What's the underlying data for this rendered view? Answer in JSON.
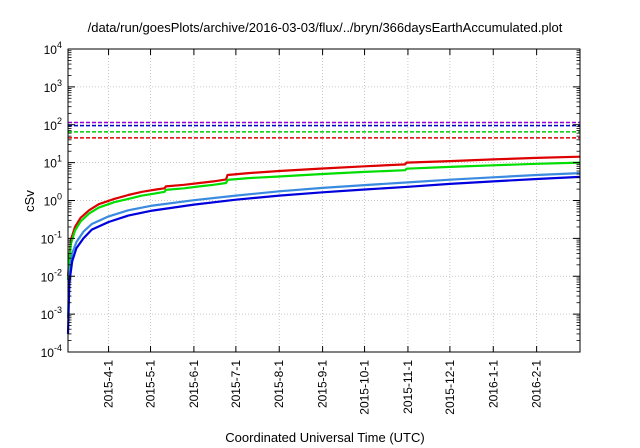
{
  "chart_data": {
    "type": "line",
    "title": "/data/run/goesPlots/archive/2016-03-03/flux/../bryn/366daysEarthAccumulated.plot",
    "xlabel": "Coordinated Universal Time (UTC)",
    "ylabel": "cSv",
    "y_scale": "log",
    "ylim": [
      0.0001,
      10000
    ],
    "xlim": [
      "2015-03-03",
      "2016-03-03"
    ],
    "grid": true,
    "legend": "none",
    "x_ticks": [
      "2015-4-1",
      "2015-5-1",
      "2015-6-1",
      "2015-7-1",
      "2015-8-1",
      "2015-9-1",
      "2015-10-1",
      "2015-11-1",
      "2015-12-1",
      "2016-1-1",
      "2016-2-1"
    ],
    "y_ticks": [
      {
        "value": 0.0001,
        "base": "10",
        "exp": "-4"
      },
      {
        "value": 0.001,
        "base": "10",
        "exp": "-3"
      },
      {
        "value": 0.01,
        "base": "10",
        "exp": "-2"
      },
      {
        "value": 0.1,
        "base": "10",
        "exp": "-1"
      },
      {
        "value": 1,
        "base": "10",
        "exp": "0"
      },
      {
        "value": 10,
        "base": "10",
        "exp": "1"
      },
      {
        "value": 100,
        "base": "10",
        "exp": "2"
      },
      {
        "value": 1000,
        "base": "10",
        "exp": "3"
      },
      {
        "value": 10000,
        "base": "10",
        "exp": "4"
      }
    ],
    "thresholds": [
      {
        "value": 115,
        "color": "#9400d3"
      },
      {
        "value": 95,
        "color": "#0000cd"
      },
      {
        "value": 65,
        "color": "#00cc00"
      },
      {
        "value": 45,
        "color": "#dd0000"
      }
    ],
    "series": [
      {
        "color": "#dd0000",
        "points": [
          [
            "2015-03-03",
            0.01
          ],
          [
            "2015-03-05",
            0.09
          ],
          [
            "2015-03-08",
            0.2
          ],
          [
            "2015-03-12",
            0.35
          ],
          [
            "2015-03-18",
            0.55
          ],
          [
            "2015-03-25",
            0.8
          ],
          [
            "2015-04-05",
            1.1
          ],
          [
            "2015-04-15",
            1.4
          ],
          [
            "2015-04-25",
            1.7
          ],
          [
            "2015-05-05",
            1.95
          ],
          [
            "2015-05-11",
            2.1
          ],
          [
            "2015-05-12",
            2.35
          ],
          [
            "2015-05-25",
            2.6
          ],
          [
            "2015-06-05",
            2.9
          ],
          [
            "2015-06-15",
            3.2
          ],
          [
            "2015-06-24",
            3.6
          ],
          [
            "2015-06-25",
            4.7
          ],
          [
            "2015-07-10",
            5.3
          ],
          [
            "2015-08-01",
            6.0
          ],
          [
            "2015-09-01",
            7.0
          ],
          [
            "2015-10-01",
            8.0
          ],
          [
            "2015-10-30",
            9.0
          ],
          [
            "2015-10-31",
            10.0
          ],
          [
            "2015-12-01",
            11.0
          ],
          [
            "2016-01-01",
            12.2
          ],
          [
            "2016-02-01",
            13.3
          ],
          [
            "2016-03-03",
            14.3
          ]
        ]
      },
      {
        "color": "#00dd00",
        "points": [
          [
            "2015-03-03",
            0.008
          ],
          [
            "2015-03-05",
            0.07
          ],
          [
            "2015-03-08",
            0.16
          ],
          [
            "2015-03-12",
            0.28
          ],
          [
            "2015-03-18",
            0.45
          ],
          [
            "2015-03-25",
            0.65
          ],
          [
            "2015-04-05",
            0.9
          ],
          [
            "2015-04-15",
            1.1
          ],
          [
            "2015-04-25",
            1.35
          ],
          [
            "2015-05-05",
            1.55
          ],
          [
            "2015-05-11",
            1.7
          ],
          [
            "2015-05-12",
            1.9
          ],
          [
            "2015-05-25",
            2.1
          ],
          [
            "2015-06-05",
            2.35
          ],
          [
            "2015-06-15",
            2.6
          ],
          [
            "2015-06-24",
            2.9
          ],
          [
            "2015-06-25",
            3.5
          ],
          [
            "2015-07-10",
            3.9
          ],
          [
            "2015-08-01",
            4.3
          ],
          [
            "2015-09-01",
            5.0
          ],
          [
            "2015-10-01",
            5.7
          ],
          [
            "2015-10-30",
            6.3
          ],
          [
            "2015-10-31",
            6.9
          ],
          [
            "2015-12-01",
            7.7
          ],
          [
            "2016-01-01",
            8.5
          ],
          [
            "2016-02-01",
            9.3
          ],
          [
            "2016-03-03",
            10.0
          ]
        ]
      },
      {
        "color": "#3a8be0",
        "points": [
          [
            "2015-03-03",
            0.0008
          ],
          [
            "2015-03-04",
            0.012
          ],
          [
            "2015-03-06",
            0.04
          ],
          [
            "2015-03-09",
            0.08
          ],
          [
            "2015-03-14",
            0.15
          ],
          [
            "2015-03-20",
            0.24
          ],
          [
            "2015-04-01",
            0.38
          ],
          [
            "2015-04-15",
            0.55
          ],
          [
            "2015-05-01",
            0.72
          ],
          [
            "2015-06-01",
            1.02
          ],
          [
            "2015-07-01",
            1.35
          ],
          [
            "2015-08-01",
            1.75
          ],
          [
            "2015-09-01",
            2.15
          ],
          [
            "2015-10-01",
            2.55
          ],
          [
            "2015-11-01",
            3.0
          ],
          [
            "2015-12-01",
            3.55
          ],
          [
            "2016-01-01",
            4.1
          ],
          [
            "2016-02-01",
            4.7
          ],
          [
            "2016-03-03",
            5.3
          ]
        ]
      },
      {
        "color": "#0000dd",
        "points": [
          [
            "2015-03-03",
            0.0003
          ],
          [
            "2015-03-04",
            0.007
          ],
          [
            "2015-03-06",
            0.025
          ],
          [
            "2015-03-09",
            0.055
          ],
          [
            "2015-03-14",
            0.1
          ],
          [
            "2015-03-20",
            0.17
          ],
          [
            "2015-04-01",
            0.27
          ],
          [
            "2015-04-15",
            0.4
          ],
          [
            "2015-05-01",
            0.53
          ],
          [
            "2015-06-01",
            0.78
          ],
          [
            "2015-07-01",
            1.05
          ],
          [
            "2015-08-01",
            1.35
          ],
          [
            "2015-09-01",
            1.65
          ],
          [
            "2015-10-01",
            1.95
          ],
          [
            "2015-11-01",
            2.3
          ],
          [
            "2015-12-01",
            2.75
          ],
          [
            "2016-01-01",
            3.2
          ],
          [
            "2016-02-01",
            3.7
          ],
          [
            "2016-03-03",
            4.2
          ]
        ]
      }
    ]
  }
}
